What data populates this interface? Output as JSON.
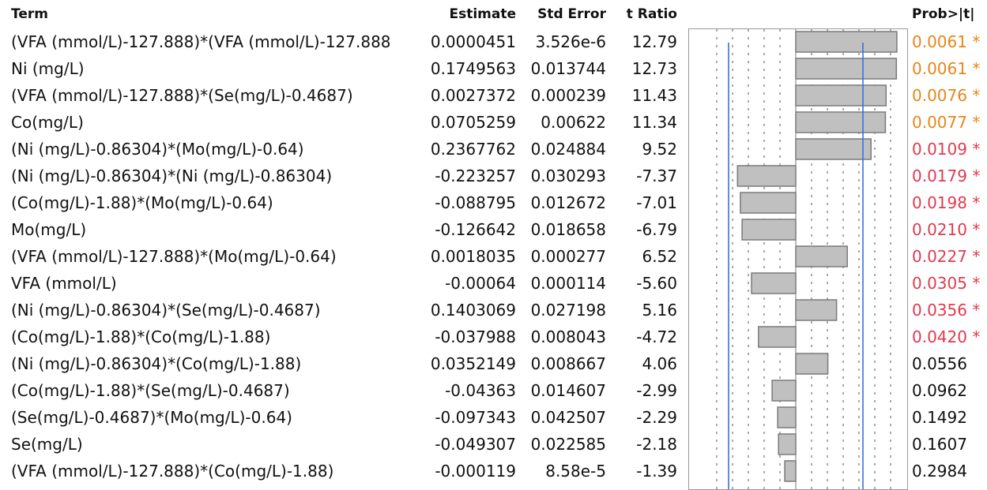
{
  "headers": {
    "term": "Term",
    "estimate": "Estimate",
    "std_error": "Std Error",
    "t_ratio": "t Ratio",
    "prob": "Prob>|t|"
  },
  "colors": {
    "bar_fill": "#c0c0c0",
    "bar_stroke": "#7a7a7a",
    "ref_line": "#3a6fdc",
    "sig_orange": "#e6861a",
    "sig_red": "#e03a4e"
  },
  "rows": [
    {
      "term": "(VFA (mmol/L)-127.888)*(VFA (mmol/L)-127.888",
      "estimate": "0.0000451",
      "std_error": "3.526e-6",
      "t_ratio": "12.79",
      "t": 12.79,
      "prob": "0.0061 *",
      "level": "orange"
    },
    {
      "term": "Ni (mg/L)",
      "estimate": "0.1749563",
      "std_error": "0.013744",
      "t_ratio": "12.73",
      "t": 12.73,
      "prob": "0.0061 *",
      "level": "orange"
    },
    {
      "term": "(VFA (mmol/L)-127.888)*(Se(mg/L)-0.4687)",
      "estimate": "0.0027372",
      "std_error": "0.000239",
      "t_ratio": "11.43",
      "t": 11.43,
      "prob": "0.0076 *",
      "level": "orange"
    },
    {
      "term": "Co(mg/L)",
      "estimate": "0.0705259",
      "std_error": "0.00622",
      "t_ratio": "11.34",
      "t": 11.34,
      "prob": "0.0077 *",
      "level": "orange"
    },
    {
      "term": "(Ni (mg/L)-0.86304)*(Mo(mg/L)-0.64)",
      "estimate": "0.2367762",
      "std_error": "0.024884",
      "t_ratio": "9.52",
      "t": 9.52,
      "prob": "0.0109 *",
      "level": "red"
    },
    {
      "term": "(Ni (mg/L)-0.86304)*(Ni (mg/L)-0.86304)",
      "estimate": "-0.223257",
      "std_error": "0.030293",
      "t_ratio": "-7.37",
      "t": -7.37,
      "prob": "0.0179 *",
      "level": "red"
    },
    {
      "term": "(Co(mg/L)-1.88)*(Mo(mg/L)-0.64)",
      "estimate": "-0.088795",
      "std_error": "0.012672",
      "t_ratio": "-7.01",
      "t": -7.01,
      "prob": "0.0198 *",
      "level": "red"
    },
    {
      "term": "Mo(mg/L)",
      "estimate": "-0.126642",
      "std_error": "0.018658",
      "t_ratio": "-6.79",
      "t": -6.79,
      "prob": "0.0210 *",
      "level": "red"
    },
    {
      "term": "(VFA (mmol/L)-127.888)*(Mo(mg/L)-0.64)",
      "estimate": "0.0018035",
      "std_error": "0.000277",
      "t_ratio": "6.52",
      "t": 6.52,
      "prob": "0.0227 *",
      "level": "red"
    },
    {
      "term": "VFA (mmol/L)",
      "estimate": "-0.00064",
      "std_error": "0.000114",
      "t_ratio": "-5.60",
      "t": -5.6,
      "prob": "0.0305 *",
      "level": "red"
    },
    {
      "term": "(Ni (mg/L)-0.86304)*(Se(mg/L)-0.4687)",
      "estimate": "0.1403069",
      "std_error": "0.027198",
      "t_ratio": "5.16",
      "t": 5.16,
      "prob": "0.0356 *",
      "level": "red"
    },
    {
      "term": "(Co(mg/L)-1.88)*(Co(mg/L)-1.88)",
      "estimate": "-0.037988",
      "std_error": "0.008043",
      "t_ratio": "-4.72",
      "t": -4.72,
      "prob": "0.0420 *",
      "level": "red"
    },
    {
      "term": "(Ni (mg/L)-0.86304)*(Co(mg/L)-1.88)",
      "estimate": "0.0352149",
      "std_error": "0.008667",
      "t_ratio": "4.06",
      "t": 4.06,
      "prob": "0.0556",
      "level": "none"
    },
    {
      "term": "(Co(mg/L)-1.88)*(Se(mg/L)-0.4687)",
      "estimate": "-0.04363",
      "std_error": "0.014607",
      "t_ratio": "-2.99",
      "t": -2.99,
      "prob": "0.0962",
      "level": "none"
    },
    {
      "term": "(Se(mg/L)-0.4687)*(Mo(mg/L)-0.64)",
      "estimate": "-0.097343",
      "std_error": "0.042507",
      "t_ratio": "-2.29",
      "t": -2.29,
      "prob": "0.1492",
      "level": "none"
    },
    {
      "term": "Se(mg/L)",
      "estimate": "-0.049307",
      "std_error": "0.022585",
      "t_ratio": "-2.18",
      "t": -2.18,
      "prob": "0.1607",
      "level": "none"
    },
    {
      "term": "(VFA (mmol/L)-127.888)*(Co(mg/L)-1.88)",
      "estimate": "-0.000119",
      "std_error": "8.58e-5",
      "t_ratio": "-1.39",
      "t": -1.39,
      "prob": "0.2984",
      "level": "none"
    }
  ],
  "chart_data": {
    "type": "bar",
    "orientation": "horizontal",
    "t_range": [
      -14,
      14
    ],
    "reference_lines_t": [
      -8.5,
      8.5
    ]
  }
}
